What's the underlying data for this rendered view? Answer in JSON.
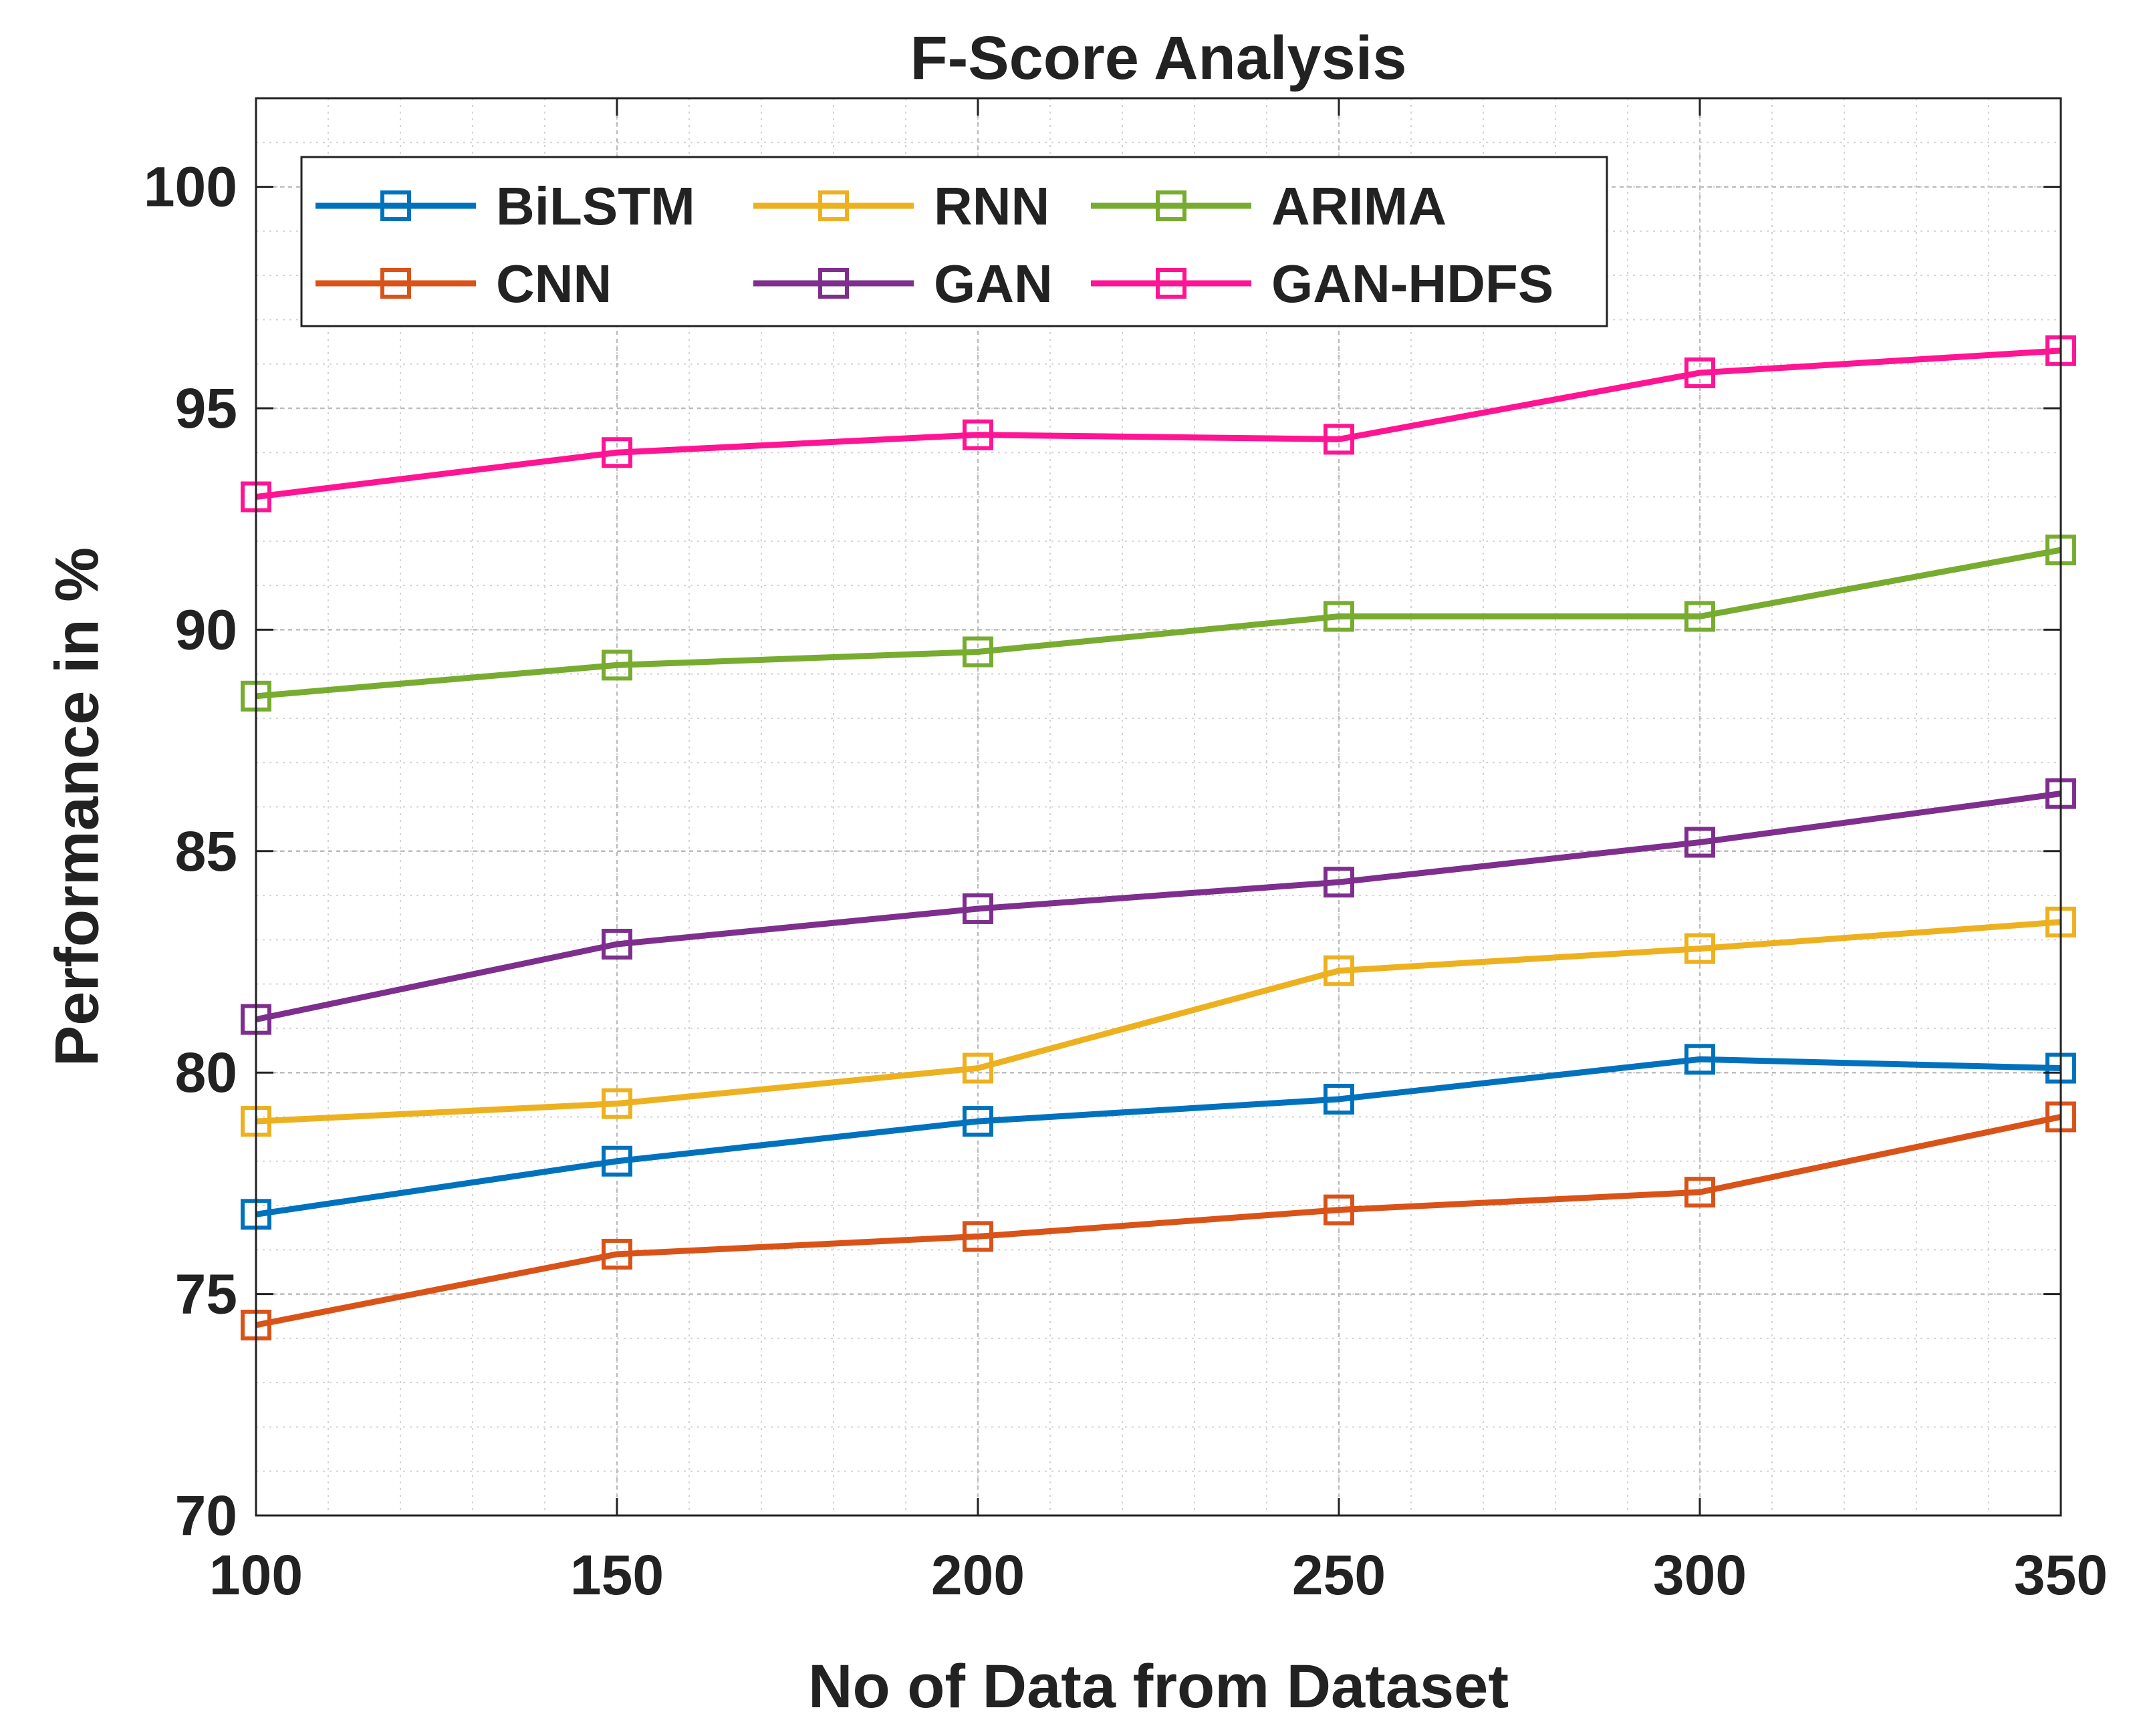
{
  "chart_data": {
    "type": "line",
    "title": "F-Score Analysis",
    "xlabel": "No of Data from Dataset",
    "ylabel": "Performance in %",
    "x": [
      100,
      150,
      200,
      250,
      300,
      350
    ],
    "xlim": [
      100,
      350
    ],
    "ylim": [
      70,
      102
    ],
    "xticks": [
      "100",
      "150",
      "200",
      "250",
      "300",
      "350"
    ],
    "yticks": [
      "70",
      "75",
      "80",
      "85",
      "90",
      "95",
      "100"
    ],
    "grid": true,
    "minor_grid": true,
    "legend_position": "top",
    "legend_columns": 3,
    "marker": "square",
    "series": [
      {
        "name": "BiLSTM",
        "color": "#0072BD",
        "values": [
          76.8,
          78.0,
          78.9,
          79.4,
          80.3,
          80.1
        ]
      },
      {
        "name": "CNN",
        "color": "#D95319",
        "values": [
          74.3,
          75.9,
          76.3,
          76.9,
          77.3,
          79.0
        ]
      },
      {
        "name": "RNN",
        "color": "#EDB120",
        "values": [
          78.9,
          79.3,
          80.1,
          82.3,
          82.8,
          83.4
        ]
      },
      {
        "name": "GAN",
        "color": "#7E2F8E",
        "values": [
          81.2,
          82.9,
          83.7,
          84.3,
          85.2,
          86.3
        ]
      },
      {
        "name": "ARIMA",
        "color": "#77AC30",
        "values": [
          88.5,
          89.2,
          89.5,
          90.3,
          90.3,
          91.8
        ]
      },
      {
        "name": "GAN-HDFS",
        "color": "#FF1493",
        "values": [
          93.0,
          94.0,
          94.4,
          94.3,
          95.8,
          96.3
        ]
      }
    ],
    "legend_order": [
      "BiLSTM",
      "RNN",
      "ARIMA",
      "CNN",
      "GAN",
      "GAN-HDFS"
    ]
  }
}
